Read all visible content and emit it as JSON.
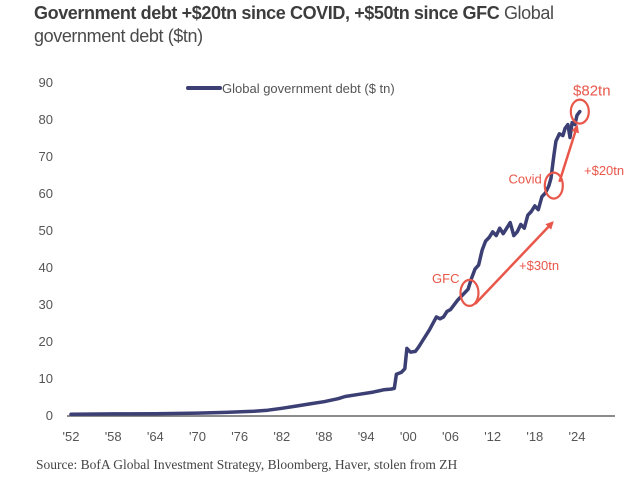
{
  "title": {
    "bold": "Government debt +$20tn since COVID, +$50tn since GFC",
    "light": " Global government debt ($tn)"
  },
  "source": "Source: BofA Global Investment Strategy, Bloomberg, Haver, stolen from ZH",
  "colors": {
    "line": "#3b3f73",
    "annotation": "#e8574a",
    "axis": "#666666"
  },
  "chart_data": {
    "type": "line",
    "title": "Government debt +$20tn since COVID, +$50tn since GFC Global government debt ($tn)",
    "xlabel": "",
    "ylabel": "",
    "xlim": [
      1952,
      2030
    ],
    "ylim": [
      0,
      90
    ],
    "yticks": [
      0,
      10,
      20,
      30,
      40,
      50,
      60,
      70,
      80,
      90
    ],
    "xticks": [
      {
        "year": 1952,
        "label": "'52"
      },
      {
        "year": 1958,
        "label": "'58"
      },
      {
        "year": 1964,
        "label": "'64"
      },
      {
        "year": 1970,
        "label": "'70"
      },
      {
        "year": 1976,
        "label": "'76"
      },
      {
        "year": 1982,
        "label": "'82"
      },
      {
        "year": 1988,
        "label": "'88"
      },
      {
        "year": 1994,
        "label": "'94"
      },
      {
        "year": 2000,
        "label": "'00"
      },
      {
        "year": 2006,
        "label": "'06"
      },
      {
        "year": 2012,
        "label": "'12"
      },
      {
        "year": 2018,
        "label": "'18"
      },
      {
        "year": 2024,
        "label": "'24"
      }
    ],
    "grid": false,
    "legend": {
      "position": "top-center",
      "entries": [
        "Global government debt ($ tn)"
      ]
    },
    "series": [
      {
        "name": "Global government debt ($ tn)",
        "x": [
          1952,
          1958,
          1964,
          1970,
          1974,
          1978,
          1980,
          1982,
          1984,
          1986,
          1988,
          1990,
          1991,
          1993,
          1995,
          1996.5,
          1997.5,
          1998,
          1998.3,
          1999,
          1999.5,
          1999.8,
          2000.3,
          2001,
          2001.5,
          2002,
          2003,
          2004,
          2004.5,
          2005,
          2005.5,
          2006,
          2007,
          2007.5,
          2008,
          2008.5,
          2009,
          2009.5,
          2010,
          2010.5,
          2011,
          2011.5,
          2012,
          2012.5,
          2013,
          2013.5,
          2014,
          2014.5,
          2015,
          2015.5,
          2016,
          2016.5,
          2017,
          2017.5,
          2018,
          2018.5,
          2019,
          2019.5,
          2020,
          2020.3,
          2020.7,
          2021,
          2021.5,
          2022,
          2022.3,
          2022.7,
          2023,
          2023.3,
          2023.7,
          2024,
          2024.4
        ],
        "values": [
          0.2,
          0.3,
          0.35,
          0.5,
          0.7,
          1.0,
          1.3,
          1.8,
          2.4,
          3.0,
          3.6,
          4.4,
          5.0,
          5.6,
          6.2,
          6.8,
          7.0,
          7.2,
          11.0,
          11.5,
          12.5,
          18.0,
          17.0,
          17.2,
          18.5,
          20.0,
          23.0,
          26.5,
          26.0,
          26.5,
          28.0,
          28.5,
          31.0,
          32.0,
          33.0,
          34.0,
          37.0,
          39.5,
          40.5,
          44.5,
          47.0,
          48.0,
          49.5,
          48.5,
          50.5,
          49.0,
          50.5,
          52.0,
          48.5,
          49.5,
          51.5,
          50.5,
          54.0,
          55.0,
          56.5,
          55.5,
          59.0,
          60.0,
          62.0,
          64.0,
          70.0,
          74.0,
          76.0,
          75.5,
          77.5,
          78.5,
          75.0,
          79.0,
          78.5,
          81.0,
          82.0
        ]
      }
    ],
    "annotations": [
      {
        "label": "GFC",
        "year": 2008.7,
        "value": 33
      },
      {
        "label": "Covid",
        "year": 2020.7,
        "value": 62
      },
      {
        "label": "$82tn",
        "year": 2024.4,
        "value": 82
      },
      {
        "label": "+$30tn",
        "type": "arrow",
        "from": [
          2009.5,
          30
        ],
        "to": [
          2020.5,
          52
        ]
      },
      {
        "label": "+$20tn",
        "type": "arrow",
        "from": [
          2021.5,
          63
        ],
        "to": [
          2024.0,
          78
        ]
      }
    ]
  }
}
